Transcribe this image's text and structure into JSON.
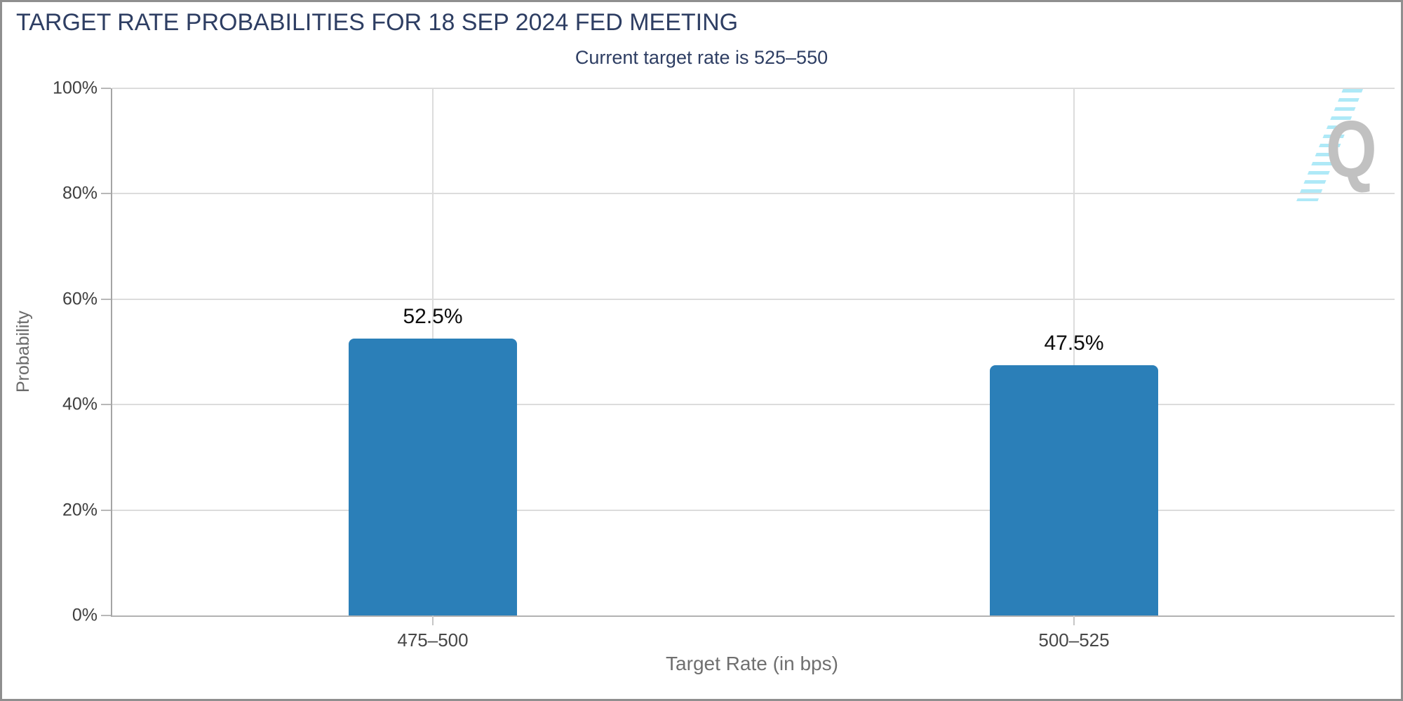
{
  "header": {
    "title": "TARGET RATE PROBABILITIES FOR 18 SEP 2024 FED MEETING",
    "subtitle": "Current target rate is 525–550"
  },
  "watermark": {
    "letter": "Q",
    "name": "quikstrike-logo"
  },
  "colors": {
    "title_navy": "#2e3e63",
    "bar_blue": "#2b7fb8",
    "gridline": "#dcdcdc",
    "axis_line": "#a5a5a5",
    "tick_text": "#3f3f3f",
    "axis_title_gray": "#6f6f6f",
    "watermark_gray": "#c1c1c1",
    "watermark_cyan": "#aee9f7",
    "frame_border": "#8f8f8f"
  },
  "chart_data": {
    "type": "bar",
    "title": "TARGET RATE PROBABILITIES FOR 18 SEP 2024 FED MEETING",
    "subtitle": "Current target rate is 525–550",
    "categories": [
      "475–500",
      "500–525"
    ],
    "values": [
      52.5,
      47.5
    ],
    "value_labels": [
      "52.5%",
      "47.5%"
    ],
    "xlabel": "Target Rate (in bps)",
    "ylabel": "Probability",
    "ylim": [
      0,
      100
    ],
    "yticks": [
      0,
      20,
      40,
      60,
      80,
      100
    ],
    "ytick_labels": [
      "0%",
      "20%",
      "40%",
      "60%",
      "80%",
      "100%"
    ],
    "bar_color": "#2b7fb8",
    "grid": true,
    "legend": "none"
  }
}
